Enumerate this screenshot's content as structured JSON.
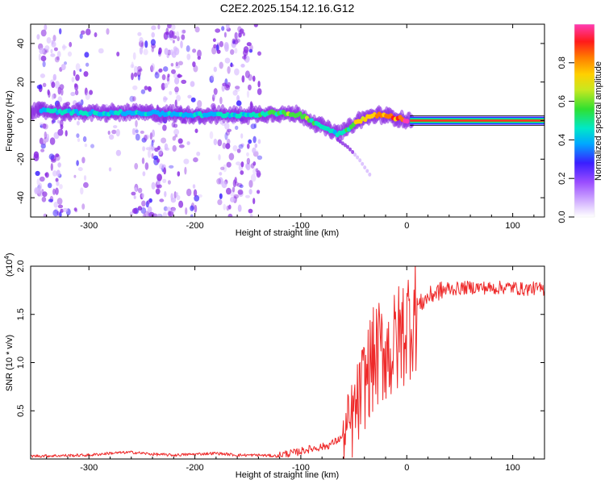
{
  "figure_title": "C2E2.2025.154.12.16.G12",
  "colors": {
    "plot_line": "#ee2a2a",
    "axis": "#000000",
    "background": "#ffffff"
  },
  "chart_data": [
    {
      "id": "spectrogram",
      "type": "heatmap",
      "xlabel": "Height of straight line (km)",
      "ylabel": "Frequency (Hz)",
      "xlim": [
        -355,
        130
      ],
      "ylim": [
        -50,
        50
      ],
      "xticks": [
        -300,
        -200,
        -100,
        0,
        100
      ],
      "yticks": [
        -40,
        -20,
        0,
        20,
        40
      ],
      "colorbar": {
        "label": "Normalized spectral amplitude",
        "range": [
          0,
          1
        ],
        "ticks": [
          0.0,
          0.2,
          0.4,
          0.6,
          0.8
        ],
        "tick_labels": [
          "0.0",
          "0.2",
          "0.4",
          "0.6",
          "0.8"
        ],
        "colormap": [
          "#ffffff",
          "#d6b8ff",
          "#8a2be2",
          "#3a1eff",
          "#00b0ff",
          "#00e8c0",
          "#40e040",
          "#c8e820",
          "#ffd000",
          "#ff7a00",
          "#ff1a1a",
          "#ff3cb4"
        ]
      },
      "dominant_ridge": {
        "x": [
          -345,
          -300,
          -250,
          -200,
          -150,
          -125,
          -100,
          -80,
          -65,
          -55,
          -45,
          -35,
          -25,
          -15,
          -5,
          0,
          50,
          100,
          130
        ],
        "frequency_hz": [
          5,
          4,
          4,
          3,
          3,
          4,
          3,
          -3,
          -7,
          -4,
          0,
          2,
          3,
          2,
          1,
          0,
          0,
          0,
          0
        ],
        "amplitude": [
          0.45,
          0.45,
          0.4,
          0.4,
          0.45,
          0.55,
          0.6,
          0.5,
          0.45,
          0.55,
          0.75,
          0.8,
          0.85,
          0.85,
          0.95,
          0.95,
          0.95,
          0.95,
          0.95
        ]
      },
      "secondary_branch": {
        "x": [
          -65,
          -55,
          -45,
          -35
        ],
        "frequency_hz": [
          -10,
          -14,
          -20,
          -28
        ],
        "amplitude": [
          0.2,
          0.15,
          0.12,
          0.08
        ]
      },
      "noise_extent_x": [
        -355,
        -132
      ]
    },
    {
      "id": "snr",
      "type": "line",
      "xlabel": "Height of straight line (km)",
      "ylabel": "SNR (10 * v/v)",
      "scale_label": "(x10",
      "scale_exponent": "4",
      "xlim": [
        -355,
        130
      ],
      "ylim": [
        0,
        2.0
      ],
      "xticks": [
        -300,
        -200,
        -100,
        0,
        100
      ],
      "yticks": [
        0.5,
        1.0,
        1.5,
        2.0
      ],
      "ytick_labels": [
        "0.5",
        "1.0",
        "1.5",
        "2.0"
      ],
      "series": [
        {
          "color": "#ee2a2a",
          "x": [
            -355,
            -300,
            -280,
            -260,
            -240,
            -220,
            -200,
            -180,
            -160,
            -140,
            -120,
            -105,
            -95,
            -85,
            -75,
            -65,
            -60,
            -55,
            -50,
            -45,
            -40,
            -35,
            -30,
            -25,
            -20,
            -15,
            -10,
            -5,
            0,
            5,
            10,
            20,
            30,
            40,
            50,
            60,
            70,
            80,
            90,
            100,
            110,
            120,
            130
          ],
          "y": [
            0.03,
            0.04,
            0.06,
            0.07,
            0.05,
            0.04,
            0.05,
            0.06,
            0.04,
            0.04,
            0.03,
            0.05,
            0.08,
            0.1,
            0.12,
            0.18,
            0.22,
            0.3,
            0.45,
            0.6,
            0.8,
            0.95,
            1.05,
            1.1,
            1.15,
            1.1,
            1.2,
            1.3,
            1.4,
            1.5,
            1.58,
            1.68,
            1.74,
            1.76,
            1.77,
            1.78,
            1.78,
            1.77,
            1.78,
            1.78,
            1.76,
            1.77,
            1.76
          ]
        }
      ]
    }
  ]
}
